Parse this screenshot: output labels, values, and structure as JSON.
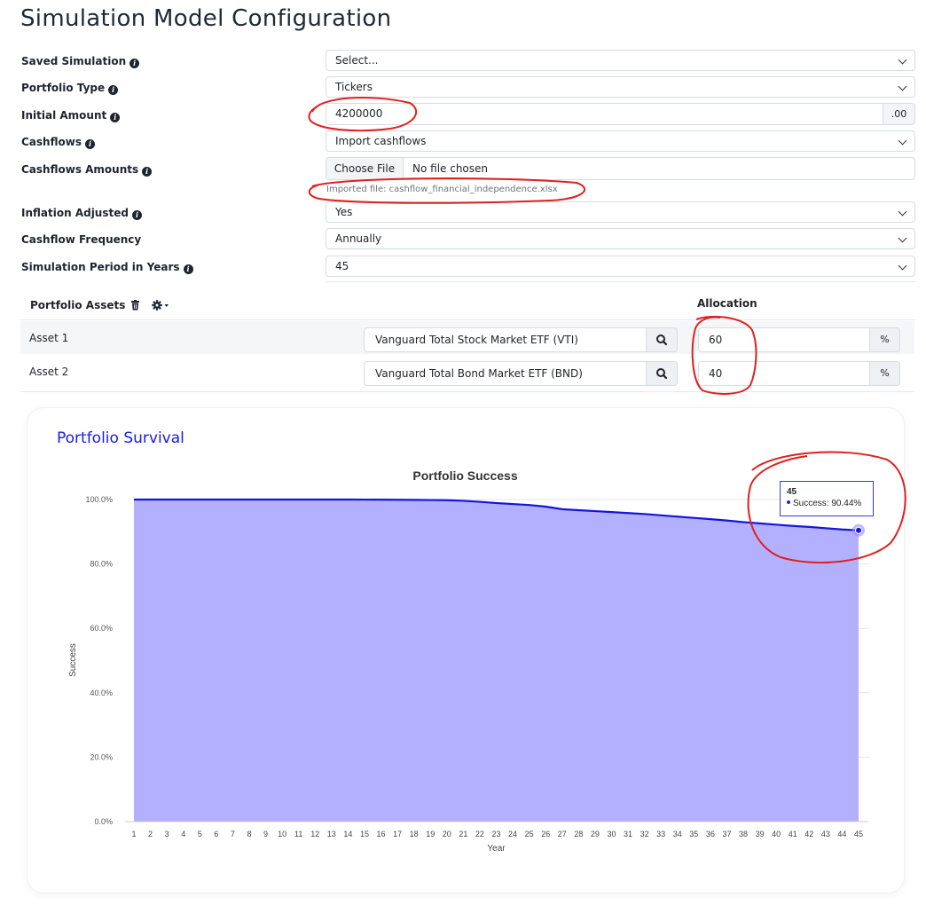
{
  "page": {
    "title": "Simulation Model Configuration"
  },
  "form": {
    "saved_simulation": {
      "label": "Saved Simulation",
      "value": "Select..."
    },
    "portfolio_type": {
      "label": "Portfolio Type",
      "value": "Tickers"
    },
    "initial_amount": {
      "label": "Initial Amount",
      "value": "4200000",
      "suffix": ".00"
    },
    "cashflows": {
      "label": "Cashflows",
      "value": "Import cashflows"
    },
    "cashflows_amounts": {
      "label": "Cashflows Amounts",
      "button": "Choose File",
      "file_text": "No file chosen",
      "help": "Imported file: cashflow_financial_independence.xlsx"
    },
    "inflation_adjusted": {
      "label": "Inflation Adjusted",
      "value": "Yes"
    },
    "cashflow_frequency": {
      "label": "Cashflow Frequency",
      "value": "Annually"
    },
    "simulation_period": {
      "label": "Simulation Period in Years",
      "value": "45"
    }
  },
  "assets": {
    "header": "Portfolio Assets",
    "allocation_header": "Allocation",
    "pct_symbol": "%",
    "rows": [
      {
        "label": "Asset 1",
        "ticker": "Vanguard Total Stock Market ETF (VTI)",
        "allocation": "60"
      },
      {
        "label": "Asset 2",
        "ticker": "Vanguard Total Bond Market ETF (BND)",
        "allocation": "40"
      }
    ]
  },
  "card": {
    "title": "Portfolio Survival"
  },
  "tooltip": {
    "year": "45",
    "text": "Success: 90.44%"
  },
  "chart_data": {
    "type": "area",
    "title": "Portfolio Success",
    "xlabel": "Year",
    "ylabel": "Success",
    "ylim": [
      0,
      100
    ],
    "y_ticks": [
      "0.0%",
      "20.0%",
      "40.0%",
      "60.0%",
      "80.0%",
      "100.0%"
    ],
    "x": [
      1,
      2,
      3,
      4,
      5,
      6,
      7,
      8,
      9,
      10,
      11,
      12,
      13,
      14,
      15,
      16,
      17,
      18,
      19,
      20,
      21,
      22,
      23,
      24,
      25,
      26,
      27,
      28,
      29,
      30,
      31,
      32,
      33,
      34,
      35,
      36,
      37,
      38,
      39,
      40,
      41,
      42,
      43,
      44,
      45
    ],
    "series": [
      {
        "name": "Success",
        "values": [
          100,
          100,
          100,
          100,
          100,
          100,
          100,
          100,
          100,
          100,
          100,
          100,
          100,
          100,
          99.98,
          99.96,
          99.93,
          99.9,
          99.85,
          99.8,
          99.6,
          99.3,
          98.9,
          98.6,
          98.3,
          97.8,
          97.0,
          96.7,
          96.4,
          96.1,
          95.8,
          95.5,
          95.1,
          94.7,
          94.3,
          93.9,
          93.5,
          93.0,
          92.6,
          92.2,
          91.8,
          91.5,
          91.1,
          90.7,
          90.44
        ]
      }
    ],
    "colors": {
      "fill": "#b3b0ff",
      "line": "#1414e0",
      "grid": "#e6e6e6"
    },
    "grid": true,
    "highlight_index": 44
  },
  "colors": {
    "accent": "#1a1ae6",
    "annotation": "#e02020"
  }
}
